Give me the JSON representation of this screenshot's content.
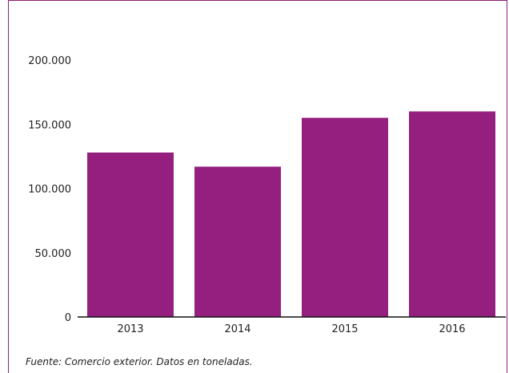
{
  "chart_data": {
    "type": "bar",
    "categories": [
      "2013",
      "2014",
      "2015",
      "2016"
    ],
    "values": [
      128000,
      117000,
      155000,
      160000
    ],
    "ylim": [
      0,
      200000
    ],
    "yticks": [
      0,
      50000,
      100000,
      150000,
      200000
    ],
    "ytick_labels": [
      "0",
      "50.000",
      "100.000",
      "150.000",
      "200.000"
    ],
    "title": "",
    "xlabel": "",
    "ylabel": "",
    "grid": false,
    "bar_color": "#941f7f",
    "axis_color": "#111111",
    "frame_color": "#8b1f7a"
  },
  "footer": {
    "source": "Fuente: Comercio exterior. Datos en toneladas."
  }
}
